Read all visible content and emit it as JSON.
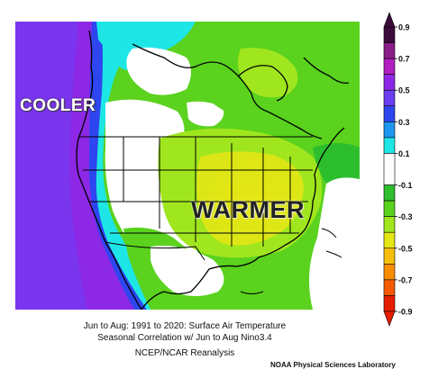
{
  "map": {
    "overlay_labels": {
      "cooler": "COOLER",
      "warmer": "WARMER"
    },
    "captions": [
      "Jun to Aug: 1991 to 2020: Surface Air Temperature",
      "Seasonal Correlation w/ Jun to Aug Nino3.4",
      "NCEP/NCAR Reanalysis"
    ],
    "credit": "NOAA Physical Sciences Laboratory"
  },
  "colorbar": {
    "ticks": [
      "0.9",
      "0.7",
      "0.5",
      "0.3",
      "0.1",
      "-0.1",
      "-0.3",
      "-0.5",
      "-0.7",
      "-0.9"
    ],
    "bands": [
      {
        "from": 0.9,
        "to": 0.8,
        "color": "#3c0a3c"
      },
      {
        "from": 0.8,
        "to": 0.7,
        "color": "#8a1e8a"
      },
      {
        "from": 0.7,
        "to": 0.6,
        "color": "#b020c0"
      },
      {
        "from": 0.6,
        "to": 0.5,
        "color": "#8c28e6"
      },
      {
        "from": 0.5,
        "to": 0.4,
        "color": "#6a3df0"
      },
      {
        "from": 0.4,
        "to": 0.3,
        "color": "#2e46f0"
      },
      {
        "from": 0.3,
        "to": 0.2,
        "color": "#1f96f0"
      },
      {
        "from": 0.2,
        "to": 0.1,
        "color": "#1ee6e6"
      },
      {
        "from": 0.1,
        "to": -0.1,
        "color": "#ffffff"
      },
      {
        "from": -0.1,
        "to": -0.2,
        "color": "#2dbe2d"
      },
      {
        "from": -0.2,
        "to": -0.3,
        "color": "#5ad21e"
      },
      {
        "from": -0.3,
        "to": -0.4,
        "color": "#a0e61e"
      },
      {
        "from": -0.4,
        "to": -0.5,
        "color": "#e6e614"
      },
      {
        "from": -0.5,
        "to": -0.6,
        "color": "#f5be0a"
      },
      {
        "from": -0.6,
        "to": -0.7,
        "color": "#fa8c00"
      },
      {
        "from": -0.7,
        "to": -0.8,
        "color": "#f55a00"
      },
      {
        "from": -0.8,
        "to": -0.9,
        "color": "#e61e00"
      }
    ],
    "range": [
      -0.9,
      0.9
    ]
  }
}
